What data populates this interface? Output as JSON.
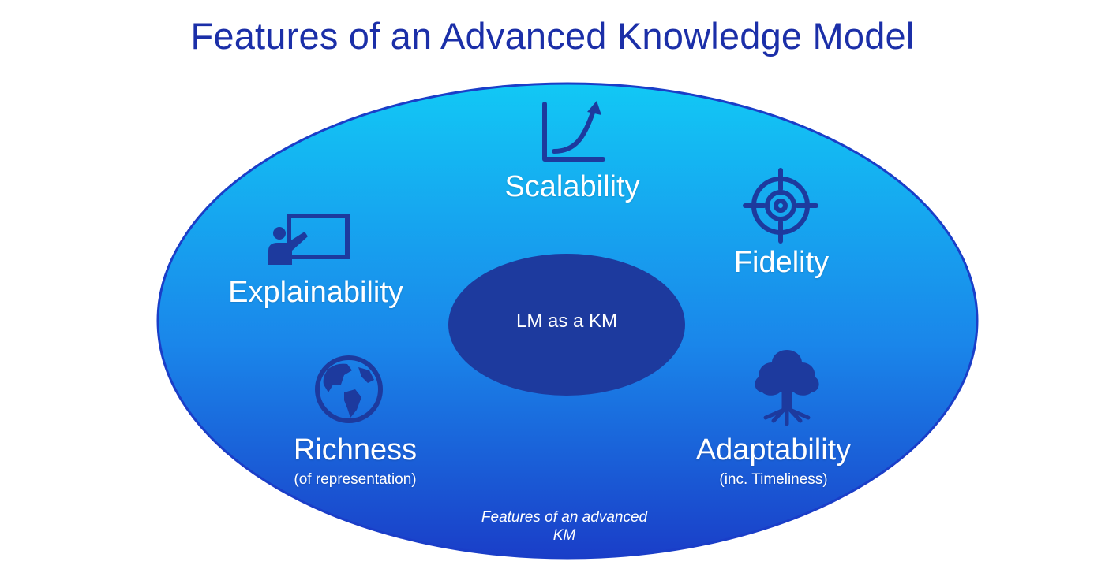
{
  "title": "Features of an Advanced Knowledge Model",
  "center": "LM as a KM",
  "caption": "Features of an advanced KM",
  "features": {
    "scalability": {
      "label": "Scalability",
      "icon": "growth-chart-icon"
    },
    "fidelity": {
      "label": "Fidelity",
      "icon": "target-icon"
    },
    "explainability": {
      "label": "Explainability",
      "icon": "presenter-board-icon"
    },
    "richness": {
      "label": "Richness",
      "sub": "(of representation)",
      "icon": "globe-icon"
    },
    "adaptability": {
      "label": "Adaptability",
      "sub": "(inc. Timeliness)",
      "icon": "tree-icon"
    }
  },
  "colors": {
    "title": "#1b2fa8",
    "ellipse_top": "#12c8f5",
    "ellipse_bottom": "#1a3ec8",
    "center_ellipse": "#1d3a9e",
    "icon": "#1d3a9e",
    "text": "#ffffff"
  }
}
